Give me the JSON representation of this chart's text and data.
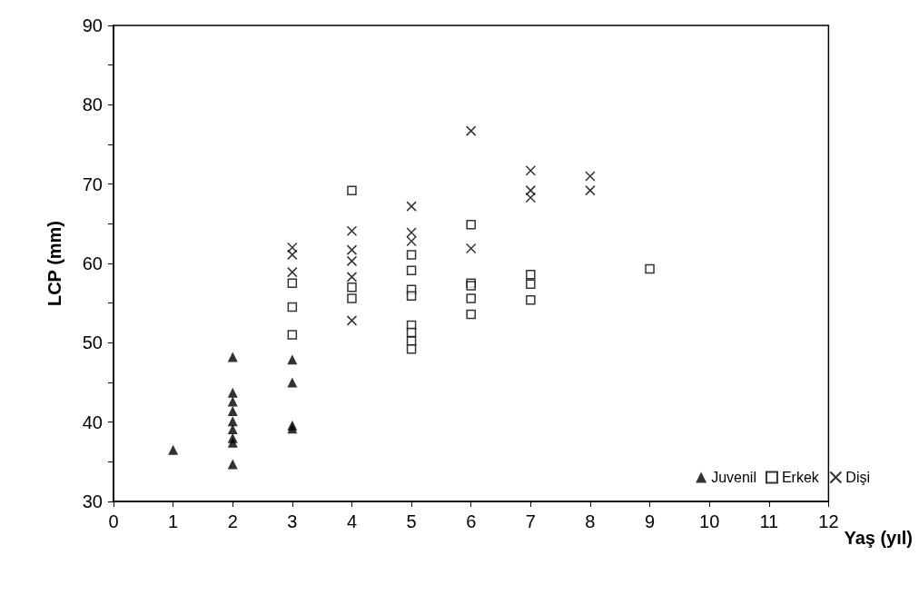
{
  "chart_data": {
    "type": "scatter",
    "xlabel": "Yaş (yıl)",
    "ylabel": "LCP (mm)",
    "xlim": [
      0,
      12
    ],
    "xticks": [
      0,
      1,
      2,
      3,
      4,
      5,
      6,
      7,
      8,
      9,
      10,
      11,
      12
    ],
    "ylim": [
      30,
      90
    ],
    "yticks": [
      30,
      {
        "value": 35,
        "label": null
      },
      40,
      {
        "value": 45,
        "label": null
      },
      50,
      {
        "value": 55,
        "label": null
      },
      60,
      {
        "value": 65,
        "label": null
      },
      70,
      {
        "value": 75,
        "label": null
      },
      80,
      {
        "value": 85,
        "label": null
      },
      90
    ],
    "grid": false,
    "legend": "bottom right",
    "series": [
      {
        "name": "Juvenil",
        "color": "#000000",
        "marker": "triangle",
        "x": [
          1,
          2,
          2,
          2,
          2,
          2,
          2,
          2,
          2,
          2,
          3,
          3,
          3,
          3
        ],
        "values": [
          36.5,
          48.2,
          43.7,
          42.6,
          41.4,
          40.1,
          39.1,
          38,
          37.4,
          34.7,
          47.9,
          45,
          39.6,
          39.2
        ]
      },
      {
        "name": "Erkek",
        "color": "#000000",
        "marker": "square",
        "x": [
          3,
          3,
          3,
          4,
          4,
          4,
          5,
          5,
          5,
          5,
          5,
          5,
          5,
          5,
          6,
          6,
          6,
          6,
          6,
          7,
          7,
          7,
          9
        ],
        "values": [
          57.5,
          54.5,
          51,
          69.2,
          57,
          55.6,
          61.1,
          59.1,
          56.7,
          55.9,
          52.2,
          51.3,
          50.2,
          49.2,
          64.9,
          57.5,
          57.2,
          55.6,
          53.6,
          58.6,
          57.4,
          55.4,
          59.3
        ]
      },
      {
        "name": "Dişi",
        "color": "#000000",
        "marker": "cross",
        "x": [
          3,
          3,
          3,
          4,
          4,
          4,
          4,
          4,
          5,
          5,
          5,
          6,
          6,
          7,
          7,
          7,
          8,
          8
        ],
        "values": [
          62,
          61.1,
          58.9,
          64.1,
          61.7,
          60.3,
          58.3,
          52.8,
          67.2,
          63.9,
          62.8,
          76.7,
          61.9,
          71.7,
          69.2,
          68.3,
          71,
          69.2
        ]
      }
    ]
  }
}
